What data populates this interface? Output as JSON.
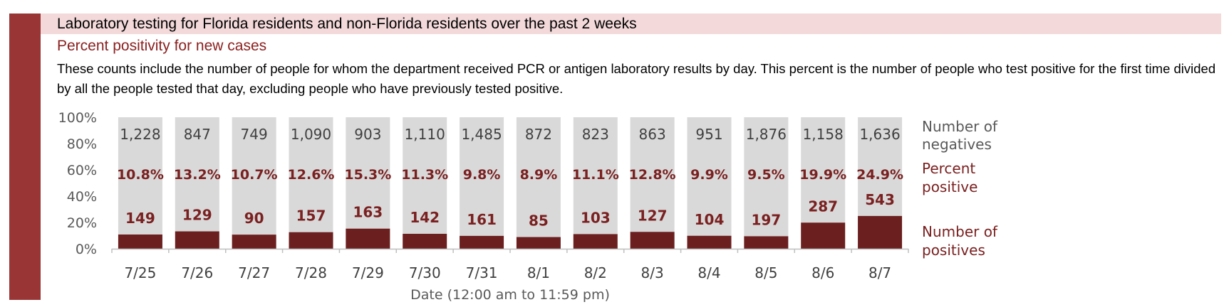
{
  "header": {
    "title": "Laboratory testing for Florida residents and non-Florida residents over the past 2 weeks",
    "subtitle": "Percent positivity for new cases",
    "description": "These counts include the number of people for whom the department received PCR or antigen laboratory results by day. This percent is the number of people who test positive for the first time divided by all the people tested that day, excluding people who have previously tested positive."
  },
  "colors": {
    "accent": "#9a3535",
    "title_band": "#f3d9da",
    "positives": "#6b1f1f",
    "negatives": "#d9d9d9"
  },
  "chart_data": {
    "type": "bar",
    "stacked": true,
    "normalized": true,
    "categories": [
      "7/25",
      "7/26",
      "7/27",
      "7/28",
      "7/29",
      "7/30",
      "7/31",
      "8/1",
      "8/2",
      "8/3",
      "8/4",
      "8/5",
      "8/6",
      "8/7"
    ],
    "series": [
      {
        "name": "Number of positives",
        "values": [
          149,
          129,
          90,
          157,
          163,
          142,
          161,
          85,
          103,
          127,
          104,
          197,
          287,
          543
        ]
      },
      {
        "name": "Number of negatives",
        "values": [
          1228,
          847,
          749,
          1090,
          903,
          1110,
          1485,
          872,
          823,
          863,
          951,
          1876,
          1158,
          1636
        ]
      }
    ],
    "negatives_labels": [
      "1,228",
      "847",
      "749",
      "1,090",
      "903",
      "1,110",
      "1,485",
      "872",
      "823",
      "863",
      "951",
      "1,876",
      "1,158",
      "1,636"
    ],
    "percent_positive": [
      "10.8%",
      "13.2%",
      "10.7%",
      "12.6%",
      "15.3%",
      "11.3%",
      "9.8%",
      "8.9%",
      "11.1%",
      "12.8%",
      "9.9%",
      "9.5%",
      "19.9%",
      "24.9%"
    ],
    "percent_positive_values": [
      10.8,
      13.2,
      10.7,
      12.6,
      15.3,
      11.3,
      9.8,
      8.9,
      11.1,
      12.8,
      9.9,
      9.5,
      19.9,
      24.9
    ],
    "y_ticks": [
      "100%",
      "80%",
      "60%",
      "40%",
      "20%",
      "0%"
    ],
    "ylim": [
      0,
      100
    ],
    "xlabel": "Date (12:00 am to 11:59 pm)",
    "legend": {
      "negatives": [
        "Number of",
        "negatives"
      ],
      "percent": [
        "Percent",
        "positive"
      ],
      "positives": [
        "Number of",
        "positives"
      ]
    },
    "legend_placement": "right",
    "grid": false
  }
}
